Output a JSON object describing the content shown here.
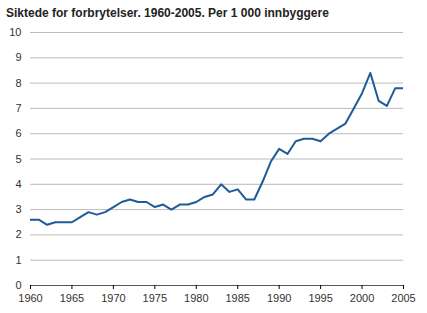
{
  "chart_data": {
    "type": "line",
    "title": "Siktede for forbrytelser. 1960-2005. Per 1 000 innbyggere",
    "x": [
      1960,
      1961,
      1962,
      1963,
      1964,
      1965,
      1966,
      1967,
      1968,
      1969,
      1970,
      1971,
      1972,
      1973,
      1974,
      1975,
      1976,
      1977,
      1978,
      1979,
      1980,
      1981,
      1982,
      1983,
      1984,
      1985,
      1986,
      1987,
      1988,
      1989,
      1990,
      1991,
      1992,
      1993,
      1994,
      1995,
      1996,
      1997,
      1998,
      1999,
      2000,
      2001,
      2002,
      2003,
      2004,
      2005
    ],
    "values": [
      2.6,
      2.6,
      2.4,
      2.5,
      2.5,
      2.5,
      2.7,
      2.9,
      2.8,
      2.9,
      3.1,
      3.3,
      3.4,
      3.3,
      3.3,
      3.1,
      3.2,
      3.0,
      3.2,
      3.2,
      3.3,
      3.5,
      3.6,
      4.0,
      3.7,
      3.8,
      3.4,
      3.4,
      4.1,
      4.9,
      5.4,
      5.2,
      5.7,
      5.8,
      5.8,
      5.7,
      6.0,
      6.2,
      6.4,
      7.0,
      7.6,
      8.4,
      7.3,
      7.1,
      7.8,
      7.8
    ],
    "color": "#1f5a99",
    "xlim": [
      1960,
      2005
    ],
    "xticks": [
      1960,
      1965,
      1970,
      1975,
      1980,
      1985,
      1990,
      1995,
      2000,
      2005
    ],
    "ylim": [
      0,
      10
    ],
    "yticks": [
      0,
      1,
      2,
      3,
      4,
      5,
      6,
      7,
      8,
      9,
      10
    ],
    "grid": true
  }
}
